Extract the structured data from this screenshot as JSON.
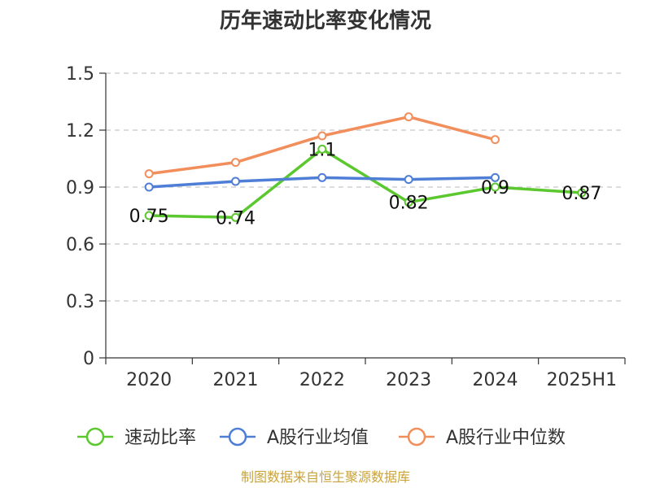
{
  "chart_data": {
    "type": "line",
    "title": "历年速动比率变化情况",
    "categories": [
      "2020",
      "2021",
      "2022",
      "2023",
      "2024",
      "2025H1"
    ],
    "yticks": [
      "0",
      "0.3",
      "0.6",
      "0.9",
      "1.2",
      "1.5"
    ],
    "ylim": [
      0,
      1.5
    ],
    "grid": true,
    "legend_position": "bottom",
    "series": [
      {
        "name": "速动比率",
        "color": "#5cc82f",
        "values": [
          0.75,
          0.74,
          1.1,
          0.82,
          0.9,
          0.87
        ],
        "labels": [
          "0.75",
          "0.74",
          "1.1",
          "0.82",
          "0.9",
          "0.87"
        ]
      },
      {
        "name": "A股行业均值",
        "color": "#4f7ed7",
        "values": [
          0.9,
          0.93,
          0.95,
          0.94,
          0.95,
          null
        ]
      },
      {
        "name": "A股行业中位数",
        "color": "#f28e5b",
        "values": [
          0.97,
          1.03,
          1.17,
          1.27,
          1.15,
          null
        ]
      }
    ],
    "source": "制图数据来自恒生聚源数据库"
  }
}
